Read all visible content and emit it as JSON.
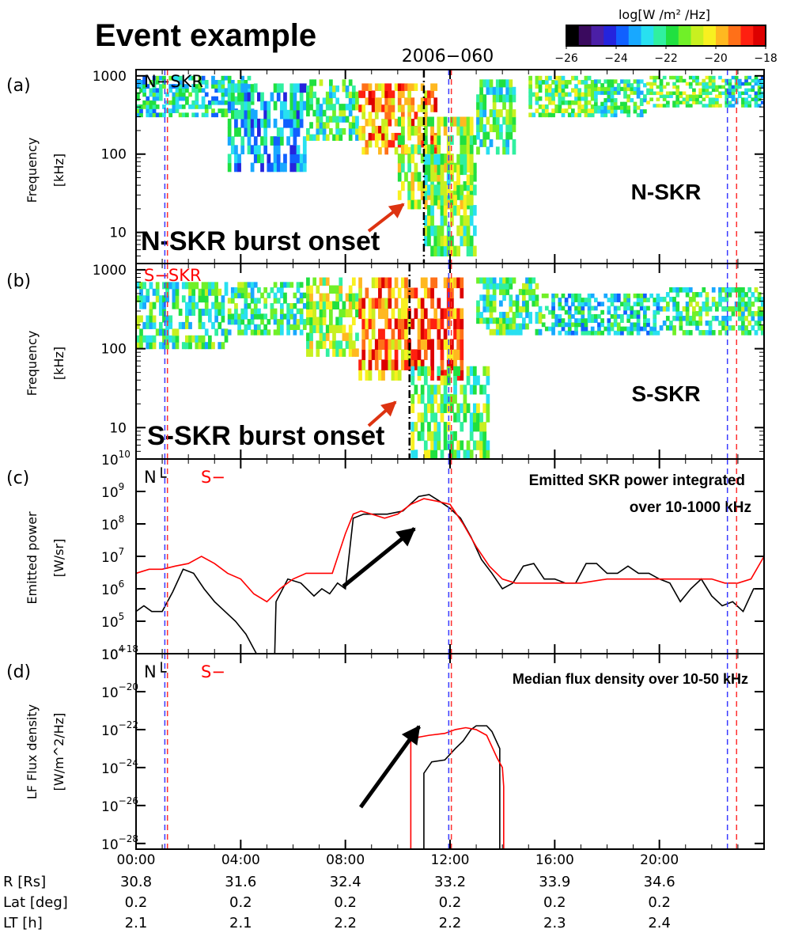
{
  "figure": {
    "title": "Event example",
    "date_label": "2006−060"
  },
  "colorbar": {
    "label": "log[W /m² /Hz]",
    "ticks": [
      "−26",
      "−24",
      "−22",
      "−20",
      "−18"
    ],
    "range": [
      -26,
      -18
    ],
    "colors": [
      "#000000",
      "#3a0a5e",
      "#4b1fa6",
      "#2424dd",
      "#1060ff",
      "#18a8ff",
      "#28e0f0",
      "#30f0a0",
      "#20e040",
      "#70f028",
      "#c8f020",
      "#f8f020",
      "#ffb820",
      "#ff7018",
      "#ff2010",
      "#dd0000"
    ]
  },
  "time_axis": {
    "ticks": [
      "00:00",
      "04:00",
      "08:00",
      "12:00",
      "16:00",
      "20:00"
    ],
    "range_hours": [
      0,
      24
    ]
  },
  "ephemeris": {
    "rows": [
      {
        "label": "R [Rs]",
        "values": [
          "30.8",
          "31.6",
          "32.4",
          "33.2",
          "33.9",
          "34.6"
        ]
      },
      {
        "label": "Lat [deg]",
        "values": [
          "0.2",
          "0.2",
          "0.2",
          "0.2",
          "0.2",
          "0.2"
        ]
      },
      {
        "label": "LT [h]",
        "values": [
          "2.1",
          "2.1",
          "2.2",
          "2.2",
          "2.3",
          "2.4"
        ]
      }
    ]
  },
  "reference_lines": {
    "blue_hours": [
      1.1,
      11.95,
      22.6
    ],
    "red_hours": [
      1.2,
      12.05,
      22.95
    ],
    "n_onset_hours": 11.0,
    "s_onset_hours": 10.45,
    "blue_color": "#3a3aff",
    "red_color": "#ff3030"
  },
  "panels": {
    "a": {
      "letter": "(a)",
      "ylabel": "Frequency",
      "yunit": "[kHz]",
      "yticks": [
        "10",
        "100",
        "1000"
      ],
      "corner_label": "N−SKR",
      "side_label": "N-SKR",
      "annotation": "N-SKR burst onset"
    },
    "b": {
      "letter": "(b)",
      "ylabel": "Frequency",
      "yunit": "[kHz]",
      "yticks": [
        "10",
        "100",
        "1000"
      ],
      "corner_label": "S−SKR",
      "side_label": "S-SKR",
      "annotation": "S-SKR burst onset"
    },
    "c": {
      "letter": "(c)",
      "ylabel": "Emitted power",
      "yunit": "[W/sr]",
      "ytick_mantissa": "10",
      "ytick_exponents": [
        "4",
        "5",
        "6",
        "7",
        "8",
        "9",
        "10"
      ],
      "legend_n": "N└",
      "legend_s": "S−",
      "annotation_line1": "Emitted SKR power integrated",
      "annotation_line2": "over 10-1000 kHz"
    },
    "d": {
      "letter": "(d)",
      "ylabel": "LF Flux density",
      "yunit": "[W/m^2/Hz]",
      "ytick_mantissa": "10",
      "ytick_exponents": [
        "−28",
        "−26",
        "−24",
        "−22",
        "−20",
        "−18"
      ],
      "legend_n": "N└",
      "legend_s": "S−",
      "annotation": "Median flux density over 10-50 kHz"
    }
  },
  "chart_data": [
    {
      "type": "heatmap",
      "title": "N-SKR",
      "xlabel": "",
      "ylabel": "Frequency [kHz]",
      "xlim_hours": [
        0,
        24
      ],
      "ylim_khz": [
        4,
        1200
      ],
      "yscale": "log",
      "zlabel": "log[W /m² /Hz]",
      "zlim": [
        -26,
        -18
      ],
      "regions": [
        {
          "t": [
            0.0,
            4.5
          ],
          "f_khz": [
            300,
            1000
          ],
          "intensity": -22.5
        },
        {
          "t": [
            3.5,
            6.5
          ],
          "f_khz": [
            60,
            800
          ],
          "intensity": -23.0
        },
        {
          "t": [
            6.5,
            8.5
          ],
          "f_khz": [
            150,
            900
          ],
          "intensity": -22.0
        },
        {
          "t": [
            8.5,
            11.5
          ],
          "f_khz": [
            100,
            800
          ],
          "intensity": -19.5
        },
        {
          "t": [
            10.0,
            13.0
          ],
          "f_khz": [
            20,
            300
          ],
          "intensity": -21.0
        },
        {
          "t": [
            11.0,
            13.0
          ],
          "f_khz": [
            5,
            100
          ],
          "intensity": -21.5
        },
        {
          "t": [
            13.0,
            14.5
          ],
          "f_khz": [
            100,
            900
          ],
          "intensity": -22.0
        },
        {
          "t": [
            15.0,
            17.5
          ],
          "f_khz": [
            300,
            1000
          ],
          "intensity": -21.5
        },
        {
          "t": [
            17.5,
            19.5
          ],
          "f_khz": [
            300,
            900
          ],
          "intensity": -22.0
        },
        {
          "t": [
            19.5,
            22.5
          ],
          "f_khz": [
            400,
            1000
          ],
          "intensity": -21.5
        },
        {
          "t": [
            22.5,
            24.0
          ],
          "f_khz": [
            400,
            1000
          ],
          "intensity": -22.5
        }
      ]
    },
    {
      "type": "heatmap",
      "title": "S-SKR",
      "xlabel": "",
      "ylabel": "Frequency [kHz]",
      "xlim_hours": [
        0,
        24
      ],
      "ylim_khz": [
        4,
        1200
      ],
      "yscale": "log",
      "zlabel": "log[W /m² /Hz]",
      "zlim": [
        -26,
        -18
      ],
      "regions": [
        {
          "t": [
            0.0,
            3.5
          ],
          "f_khz": [
            100,
            700
          ],
          "intensity": -22.0
        },
        {
          "t": [
            3.5,
            6.5
          ],
          "f_khz": [
            150,
            700
          ],
          "intensity": -22.0
        },
        {
          "t": [
            6.5,
            8.5
          ],
          "f_khz": [
            80,
            800
          ],
          "intensity": -21.0
        },
        {
          "t": [
            8.5,
            10.5
          ],
          "f_khz": [
            40,
            800
          ],
          "intensity": -19.5
        },
        {
          "t": [
            10.5,
            12.5
          ],
          "f_khz": [
            40,
            800
          ],
          "intensity": -19.0
        },
        {
          "t": [
            10.5,
            13.5
          ],
          "f_khz": [
            4,
            60
          ],
          "intensity": -21.5
        },
        {
          "t": [
            13.0,
            15.5
          ],
          "f_khz": [
            150,
            800
          ],
          "intensity": -22.0
        },
        {
          "t": [
            15.5,
            20.0
          ],
          "f_khz": [
            150,
            500
          ],
          "intensity": -22.5
        },
        {
          "t": [
            20.0,
            24.0
          ],
          "f_khz": [
            150,
            600
          ],
          "intensity": -22.0
        }
      ]
    },
    {
      "type": "line",
      "title": "Emitted SKR power integrated over 10-1000 kHz",
      "xlabel": "",
      "ylabel": "Emitted power [W/sr]",
      "yscale": "log",
      "xlim_hours": [
        0,
        24
      ],
      "ylim": [
        10000,
        10000000000
      ],
      "series": [
        {
          "name": "N",
          "color": "#000000",
          "x": [
            0.0,
            0.3,
            0.6,
            1.0,
            1.4,
            1.8,
            2.2,
            2.6,
            3.0,
            3.4,
            3.8,
            4.2,
            4.6,
            4.9,
            5.0,
            5.2,
            5.3,
            5.35,
            5.8,
            6.3,
            6.8,
            7.1,
            7.4,
            7.7,
            8.0,
            8.3,
            8.7,
            9.0,
            9.6,
            10.2,
            10.8,
            11.2,
            11.6,
            12.0,
            12.4,
            12.8,
            13.2,
            13.6,
            14.0,
            14.4,
            14.8,
            15.2,
            15.6,
            16.0,
            16.4,
            16.8,
            17.2,
            17.6,
            18.0,
            18.4,
            18.8,
            19.2,
            19.6,
            20.0,
            20.4,
            20.8,
            21.2,
            21.6,
            22.0,
            22.4,
            22.8,
            23.2,
            23.6,
            24.0
          ],
          "y": [
            200000,
            300000,
            200000,
            200000,
            800000,
            4000000,
            3000000,
            1000000,
            400000,
            200000,
            100000,
            40000,
            10000,
            10000,
            10000,
            10000,
            10000,
            400000,
            2000000,
            1500000,
            600000,
            1000000,
            700000,
            1500000,
            1000000,
            150000000,
            200000000,
            200000000,
            200000000,
            250000000,
            700000000,
            800000000,
            500000000,
            300000000,
            150000000,
            40000000,
            8000000,
            3000000,
            1000000,
            1500000,
            5000000,
            6000000,
            2000000,
            2000000,
            1500000,
            1500000,
            6000000,
            6000000,
            3000000,
            3000000,
            5000000,
            3000000,
            3000000,
            2000000,
            1500000,
            400000,
            1000000,
            2000000,
            600000,
            300000,
            400000,
            200000,
            1000000,
            1000000
          ]
        },
        {
          "name": "S",
          "color": "#ff0000",
          "x": [
            0.0,
            0.5,
            1.0,
            1.5,
            2.0,
            2.5,
            3.0,
            3.5,
            4.0,
            4.5,
            5.0,
            5.5,
            6.0,
            6.5,
            7.0,
            7.5,
            8.0,
            8.3,
            8.6,
            9.0,
            9.5,
            10.0,
            10.5,
            11.0,
            11.5,
            12.0,
            12.5,
            13.0,
            13.5,
            14.0,
            14.5,
            15.0,
            16.0,
            17.0,
            18.0,
            19.0,
            20.0,
            21.0,
            22.0,
            22.5,
            23.0,
            23.5,
            24.0
          ],
          "y": [
            3000000,
            4000000,
            4000000,
            5000000,
            6000000,
            10000000,
            6000000,
            3000000,
            2000000,
            700000,
            400000,
            1000000,
            2000000,
            3000000,
            3000000,
            3000000,
            50000000,
            200000000,
            250000000,
            200000000,
            150000000,
            200000000,
            400000000,
            600000000,
            500000000,
            400000000,
            100000000,
            20000000,
            5000000,
            2000000,
            1500000,
            1500000,
            1500000,
            1500000,
            2000000,
            2000000,
            2000000,
            2000000,
            2000000,
            1500000,
            1500000,
            2000000,
            10000000
          ]
        }
      ]
    },
    {
      "type": "line",
      "title": "Median flux density over 10-50 kHz",
      "xlabel": "",
      "ylabel": "LF Flux density [W/m^2/Hz]",
      "yscale": "log",
      "xlim_hours": [
        0,
        24
      ],
      "ylim_exp": [
        -28.5,
        -18
      ],
      "series": [
        {
          "name": "N",
          "color": "#000000",
          "x_hours": [
            11.0,
            11.0,
            11.3,
            11.8,
            12.2,
            12.5,
            12.8,
            13.0,
            13.4,
            13.6,
            13.9,
            13.9
          ],
          "log10_y": [
            -29,
            -24.3,
            -23.7,
            -23.6,
            -23.0,
            -22.6,
            -22.0,
            -21.8,
            -21.8,
            -22.1,
            -23.0,
            -29
          ]
        },
        {
          "name": "S",
          "color": "#ff0000",
          "x_hours": [
            10.5,
            10.5,
            10.8,
            11.2,
            11.8,
            12.2,
            12.6,
            13.0,
            13.4,
            13.8,
            14.0,
            14.05,
            14.05
          ],
          "log10_y": [
            -29,
            -22.6,
            -22.4,
            -22.3,
            -22.2,
            -22.0,
            -21.9,
            -22.0,
            -22.3,
            -23.5,
            -24.0,
            -25.0,
            -29
          ]
        }
      ]
    }
  ]
}
